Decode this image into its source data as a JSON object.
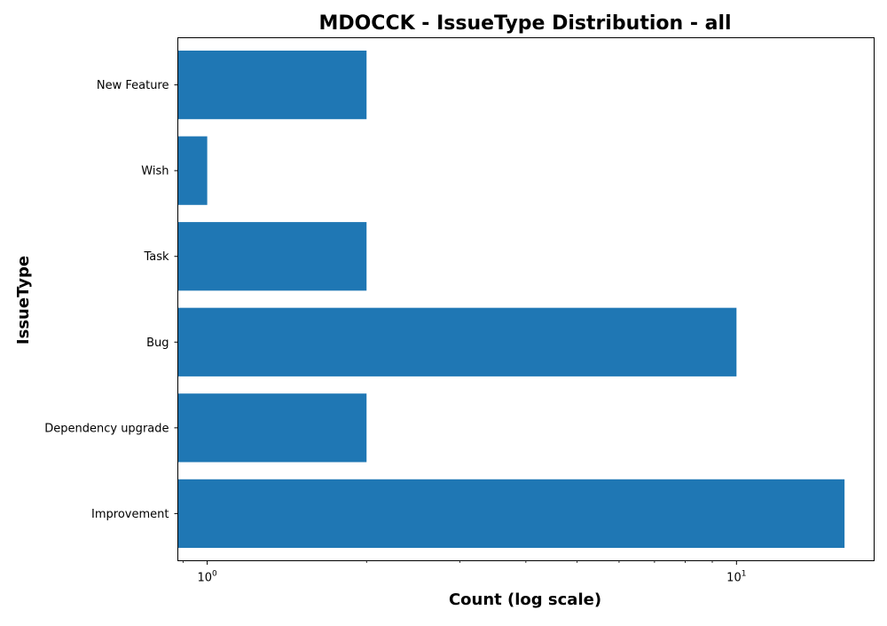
{
  "chart_data": {
    "type": "bar",
    "orientation": "horizontal",
    "title": "MDOCCK - IssueType Distribution - all",
    "xlabel": "Count (log scale)",
    "ylabel": "IssueType",
    "x_scale": "log",
    "xlim": [
      0.88,
      18.2
    ],
    "x_major_ticks": [
      {
        "value": 1,
        "base": "10",
        "exp": "0"
      },
      {
        "value": 10,
        "base": "10",
        "exp": "1"
      }
    ],
    "categories": [
      "Improvement",
      "Dependency upgrade",
      "Bug",
      "Task",
      "Wish",
      "New Feature"
    ],
    "values": [
      16,
      2,
      10,
      2,
      1,
      2
    ],
    "bar_color": "#1f77b4",
    "grid": false,
    "legend": "none"
  }
}
